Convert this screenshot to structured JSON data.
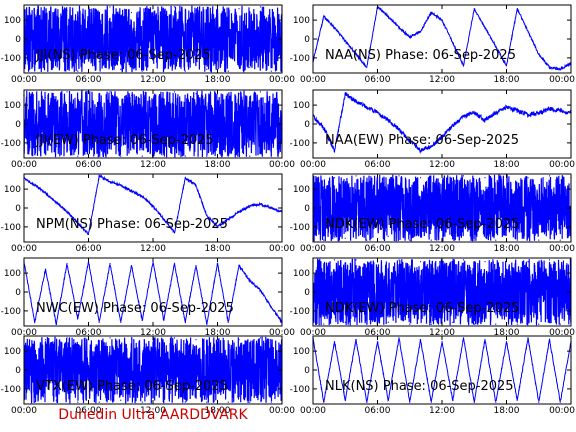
{
  "footer": {
    "text": "Dunedin Ultra AARDDVARK",
    "color": "#cc0000"
  },
  "chart_data": [
    {
      "type": "line",
      "title": "JJI(NS) Phase: 06-Sep-2025",
      "station": "JJI",
      "component": "NS",
      "pattern": "dense",
      "series_color": "#0000ff",
      "x_ticks": [
        "00:00",
        "06:00",
        "12:00",
        "18:00",
        "00:00"
      ],
      "y_ticks": [
        100,
        0,
        -100
      ],
      "xlim_hours": [
        0,
        24
      ],
      "ylim": [
        -180,
        180
      ],
      "x": [
        0,
        1,
        2,
        3,
        4,
        5,
        6,
        7,
        8,
        9,
        10,
        11,
        12,
        13,
        14,
        15,
        16,
        17,
        18,
        19,
        20,
        21,
        22,
        23,
        24
      ],
      "y": [
        100,
        -150,
        120,
        -90,
        150,
        -170,
        60,
        -120,
        170,
        -160,
        140,
        -170,
        160,
        -150,
        170,
        -170,
        150,
        -160,
        170,
        -170,
        160,
        -150,
        170,
        -170,
        150
      ]
    },
    {
      "type": "line",
      "title": "NAA(NS) Phase: 06-Sep-2025",
      "station": "NAA",
      "component": "NS",
      "pattern": "ramps",
      "series_color": "#0000ff",
      "x_ticks": [
        "00:00",
        "06:00",
        "12:00",
        "18:00",
        "00:00"
      ],
      "y_ticks": [
        100,
        0,
        -100
      ],
      "xlim_hours": [
        0,
        24
      ],
      "ylim": [
        -180,
        180
      ],
      "x": [
        0,
        1,
        2,
        3,
        4,
        5,
        6,
        7,
        8,
        9,
        10,
        11,
        12,
        13,
        14,
        15,
        16,
        17,
        18,
        19,
        20,
        21,
        22,
        23,
        24
      ],
      "y": [
        -120,
        120,
        60,
        -10,
        -80,
        -150,
        170,
        120,
        60,
        10,
        40,
        140,
        100,
        -20,
        -140,
        160,
        60,
        -40,
        -140,
        160,
        40,
        -80,
        -150,
        -160,
        -130
      ]
    },
    {
      "type": "line",
      "title": "JJI(EW) Phase: 06-Sep-2025",
      "station": "JJI",
      "component": "EW",
      "pattern": "dense",
      "series_color": "#0000ff",
      "x_ticks": [
        "00:00",
        "06:00",
        "12:00",
        "18:00",
        "00:00"
      ],
      "y_ticks": [
        100,
        0,
        -100
      ],
      "xlim_hours": [
        0,
        24
      ],
      "ylim": [
        -180,
        180
      ],
      "x": [
        0,
        1,
        2,
        3,
        4,
        5,
        6,
        7,
        8,
        9,
        10,
        11,
        12,
        13,
        14,
        15,
        16,
        17,
        18,
        19,
        20,
        21,
        22,
        23,
        24
      ],
      "y": [
        150,
        -160,
        140,
        -120,
        170,
        -170,
        120,
        -150,
        170,
        -170,
        150,
        -170,
        170,
        -160,
        170,
        -170,
        160,
        -170,
        170,
        -170,
        160,
        -170,
        170,
        -170,
        160
      ]
    },
    {
      "type": "line",
      "title": "NAA(EW) Phase: 06-Sep-2025",
      "station": "NAA",
      "component": "EW",
      "pattern": "wave",
      "series_color": "#0000ff",
      "x_ticks": [
        "00:00",
        "06:00",
        "12:00",
        "18:00",
        "00:00"
      ],
      "y_ticks": [
        100,
        0,
        -100
      ],
      "xlim_hours": [
        0,
        24
      ],
      "ylim": [
        -180,
        180
      ],
      "x": [
        0,
        1,
        2,
        3,
        4,
        5,
        6,
        7,
        8,
        9,
        10,
        11,
        12,
        13,
        14,
        15,
        16,
        17,
        18,
        19,
        20,
        21,
        22,
        23,
        24
      ],
      "y": [
        40,
        -20,
        -140,
        160,
        120,
        90,
        60,
        20,
        -30,
        -90,
        -140,
        -120,
        -70,
        -10,
        40,
        60,
        20,
        60,
        90,
        70,
        50,
        60,
        80,
        70,
        60
      ]
    },
    {
      "type": "line",
      "title": "NPM(NS) Phase: 06-Sep-2025",
      "station": "NPM",
      "component": "NS",
      "pattern": "ramps",
      "series_color": "#0000ff",
      "x_ticks": [
        "00:00",
        "06:00",
        "12:00",
        "18:00",
        "00:00"
      ],
      "y_ticks": [
        100,
        0,
        -100
      ],
      "xlim_hours": [
        0,
        24
      ],
      "ylim": [
        -180,
        180
      ],
      "x": [
        0,
        1,
        2,
        3,
        4,
        5,
        6,
        7,
        8,
        9,
        10,
        11,
        12,
        13,
        14,
        15,
        16,
        17,
        18,
        19,
        20,
        21,
        22,
        23,
        24
      ],
      "y": [
        160,
        120,
        80,
        30,
        -20,
        -80,
        -140,
        170,
        140,
        120,
        90,
        60,
        10,
        -60,
        -130,
        160,
        120,
        -40,
        -100,
        -60,
        -20,
        10,
        20,
        0,
        -20
      ]
    },
    {
      "type": "line",
      "title": "NDK(EW) Phase: 06-Sep-2025",
      "station": "NDK",
      "component": "EW",
      "pattern": "dense",
      "series_color": "#0000ff",
      "x_ticks": [
        "00:00",
        "06:00",
        "12:00",
        "18:00",
        "00:00"
      ],
      "y_ticks": [
        100,
        0,
        -100
      ],
      "xlim_hours": [
        0,
        24
      ],
      "ylim": [
        -180,
        180
      ],
      "x": [
        0,
        1,
        2,
        3,
        4,
        5,
        6,
        7,
        8,
        9,
        10,
        11,
        12,
        13,
        14,
        15,
        16,
        17,
        18,
        19,
        20,
        21,
        22,
        23,
        24
      ],
      "y": [
        170,
        -170,
        160,
        -160,
        170,
        -170,
        150,
        -150,
        170,
        -170,
        160,
        -170,
        170,
        -160,
        170,
        -170,
        160,
        -170,
        170,
        -170,
        160,
        -170,
        170,
        -170,
        160
      ]
    },
    {
      "type": "line",
      "title": "NWC(EW) Phase: 06-Sep-2025",
      "station": "NWC",
      "component": "EW",
      "pattern": "ramps",
      "series_color": "#0000ff",
      "x_ticks": [
        "00:00",
        "06:00",
        "12:00",
        "18:00",
        "00:00"
      ],
      "y_ticks": [
        100,
        0,
        -100
      ],
      "xlim_hours": [
        0,
        24
      ],
      "ylim": [
        -180,
        180
      ],
      "x": [
        0,
        1,
        2,
        3,
        4,
        5,
        6,
        7,
        8,
        9,
        10,
        11,
        12,
        13,
        14,
        15,
        16,
        17,
        18,
        19,
        20,
        21,
        22,
        23,
        24
      ],
      "y": [
        160,
        -160,
        120,
        -170,
        150,
        -140,
        160,
        -160,
        150,
        -160,
        140,
        -150,
        160,
        -150,
        150,
        -160,
        140,
        -170,
        150,
        -160,
        140,
        60,
        10,
        -80,
        -160
      ]
    },
    {
      "type": "line",
      "title": "NDK(EW) Phase: 06-Sep-2025",
      "station": "NDK",
      "component": "EW",
      "pattern": "dense",
      "series_color": "#0000ff",
      "x_ticks": [
        "00:00",
        "06:00",
        "12:00",
        "18:00",
        "00:00"
      ],
      "y_ticks": [
        100,
        0,
        -100
      ],
      "xlim_hours": [
        0,
        24
      ],
      "ylim": [
        -180,
        180
      ],
      "x": [
        0,
        1,
        2,
        3,
        4,
        5,
        6,
        7,
        8,
        9,
        10,
        11,
        12,
        13,
        14,
        15,
        16,
        17,
        18,
        19,
        20,
        21,
        22,
        23,
        24
      ],
      "y": [
        160,
        -170,
        170,
        -160,
        170,
        -170,
        160,
        -160,
        170,
        -170,
        160,
        -170,
        170,
        -160,
        170,
        -170,
        160,
        -170,
        170,
        -170,
        160,
        -170,
        170,
        -170,
        160
      ]
    },
    {
      "type": "line",
      "title": "VTX(EW) Phase: 06-Sep-2025",
      "station": "VTX",
      "component": "EW",
      "pattern": "dense",
      "series_color": "#0000ff",
      "x_ticks": [
        "00:00",
        "06:00",
        "12:00",
        "18:00",
        "00:00"
      ],
      "y_ticks": [
        100,
        0,
        -100
      ],
      "xlim_hours": [
        0,
        24
      ],
      "ylim": [
        -180,
        180
      ],
      "x": [
        0,
        1,
        2,
        3,
        4,
        5,
        6,
        7,
        8,
        9,
        10,
        11,
        12,
        13,
        14,
        15,
        16,
        17,
        18,
        19,
        20,
        21,
        22,
        23,
        24
      ],
      "y": [
        170,
        -170,
        160,
        -160,
        170,
        -170,
        160,
        -170,
        170,
        -160,
        170,
        -170,
        160,
        -170,
        170,
        -170,
        160,
        -170,
        170,
        -170,
        160,
        -170,
        170,
        -170,
        160
      ]
    },
    {
      "type": "line",
      "title": "NLK(NS) Phase: 06-Sep-2025",
      "station": "NLK",
      "component": "NS",
      "pattern": "ramps",
      "series_color": "#0000ff",
      "x_ticks": [
        "00:00",
        "06:00",
        "12:00",
        "18:00",
        "00:00"
      ],
      "y_ticks": [
        100,
        0,
        -100
      ],
      "xlim_hours": [
        0,
        24
      ],
      "ylim": [
        -180,
        180
      ],
      "x": [
        0,
        1,
        2,
        3,
        4,
        5,
        6,
        7,
        8,
        9,
        10,
        11,
        12,
        13,
        14,
        15,
        16,
        17,
        18,
        19,
        20,
        21,
        22,
        23,
        24
      ],
      "y": [
        170,
        -170,
        150,
        -160,
        160,
        -170,
        150,
        -160,
        170,
        -170,
        160,
        -170,
        150,
        -160,
        170,
        -170,
        160,
        -170,
        150,
        -160,
        170,
        -170,
        160,
        -170,
        150
      ]
    }
  ]
}
